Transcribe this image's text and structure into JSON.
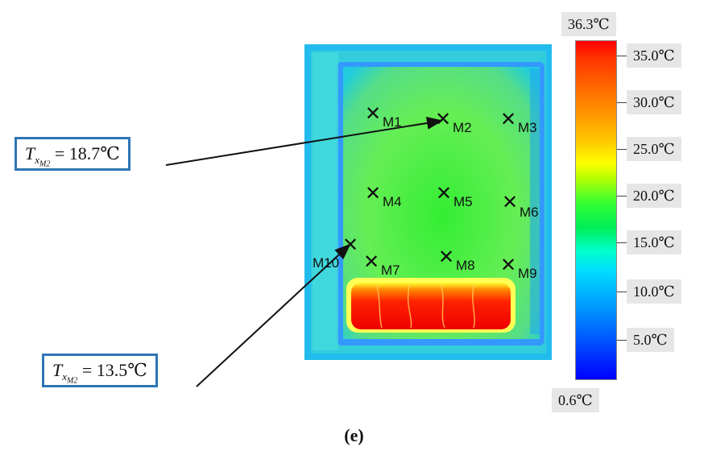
{
  "markers": [
    "M1",
    "M2",
    "M3",
    "M4",
    "M5",
    "M6",
    "M10",
    "M7",
    "M8",
    "M9"
  ],
  "callouts": [
    {
      "var": "T",
      "sub1": "x",
      "sub2": "M2",
      "value": " = 18.7℃"
    },
    {
      "var": "T",
      "sub1": "x",
      "sub2": "M2",
      "value": " = 13.5℃"
    }
  ],
  "colorbar": {
    "max_label": "36.3℃",
    "min_label": "0.6℃",
    "ticks": [
      "35.0℃",
      "30.0℃",
      "25.0℃",
      "20.0℃",
      "15.0℃",
      "10.0℃",
      "5.0℃"
    ],
    "colors": {
      "hot": "#ff0000",
      "warm": "#ffff00",
      "mid": "#33ff33",
      "cool": "#00ddff",
      "cold": "#0000ff"
    }
  },
  "caption": "(e)"
}
